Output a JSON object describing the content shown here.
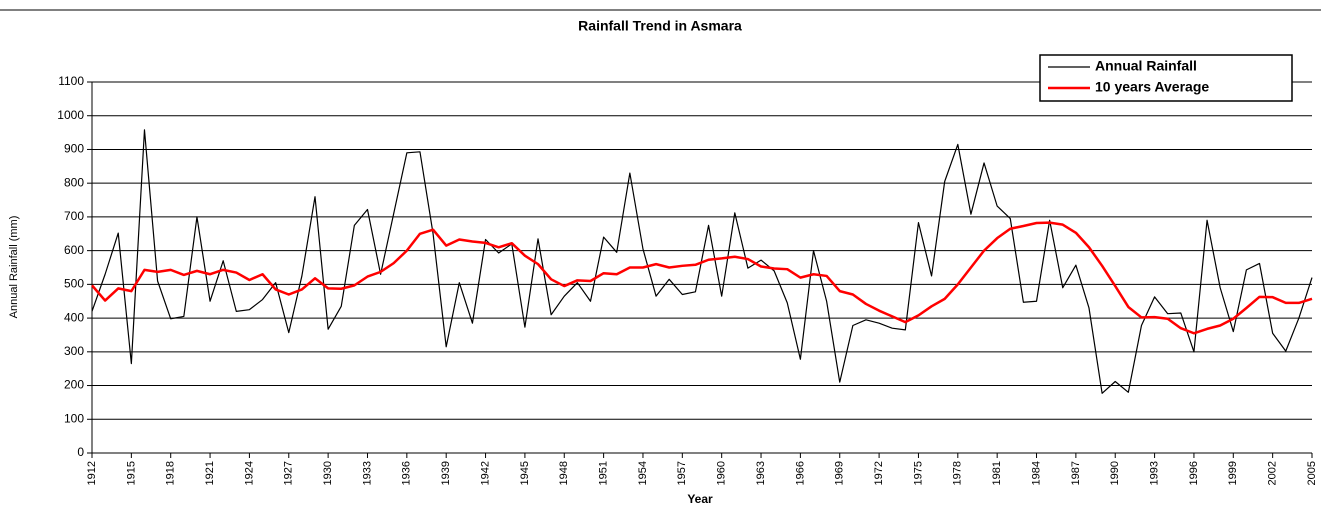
{
  "chart_data": {
    "type": "line",
    "title": "Rainfall Trend in Asmara",
    "x_label": "Year",
    "y_label": "Annual Rainfall (mm)",
    "x": [
      1912,
      1913,
      1914,
      1915,
      1916,
      1917,
      1918,
      1919,
      1920,
      1921,
      1922,
      1923,
      1924,
      1925,
      1926,
      1927,
      1928,
      1929,
      1930,
      1931,
      1932,
      1933,
      1934,
      1935,
      1936,
      1937,
      1938,
      1939,
      1940,
      1941,
      1942,
      1943,
      1944,
      1945,
      1946,
      1947,
      1948,
      1949,
      1950,
      1951,
      1952,
      1953,
      1954,
      1955,
      1956,
      1957,
      1958,
      1959,
      1960,
      1961,
      1962,
      1963,
      1964,
      1965,
      1966,
      1967,
      1968,
      1969,
      1970,
      1971,
      1972,
      1973,
      1974,
      1975,
      1976,
      1977,
      1978,
      1979,
      1980,
      1981,
      1982,
      1983,
      1984,
      1985,
      1986,
      1987,
      1988,
      1989,
      1990,
      1991,
      1992,
      1993,
      1994,
      1995,
      1996,
      1997,
      1998,
      1999,
      2000,
      2001,
      2002,
      2003,
      2004,
      2005
    ],
    "series": [
      {
        "name": "Annual Rainfall",
        "color": "#000000",
        "width": 1.2,
        "values": [
          420,
          530,
          652,
          265,
          958,
          510,
          398,
          405,
          700,
          450,
          570,
          420,
          425,
          455,
          505,
          357,
          525,
          760,
          367,
          435,
          675,
          722,
          530,
          710,
          890,
          893,
          650,
          315,
          505,
          385,
          633,
          593,
          620,
          373,
          635,
          410,
          465,
          505,
          450,
          640,
          595,
          830,
          605,
          465,
          515,
          470,
          478,
          675,
          465,
          712,
          548,
          572,
          540,
          445,
          278,
          600,
          450,
          210,
          378,
          395,
          385,
          370,
          365,
          683,
          525,
          805,
          915,
          708,
          860,
          732,
          695,
          447,
          450,
          690,
          490,
          557,
          430,
          177,
          212,
          180,
          378,
          463,
          413,
          415,
          300,
          690,
          490,
          360,
          543,
          562,
          355,
          302,
          400,
          520
        ]
      },
      {
        "name": "10 years Average",
        "color": "#ff0000",
        "width": 2.5,
        "values": [
          497,
          452,
          488,
          480,
          543,
          537,
          543,
          528,
          540,
          530,
          543,
          535,
          513,
          530,
          485,
          470,
          485,
          518,
          488,
          487,
          497,
          523,
          537,
          563,
          600,
          650,
          662,
          615,
          633,
          627,
          623,
          610,
          622,
          585,
          560,
          515,
          495,
          512,
          510,
          533,
          530,
          550,
          550,
          560,
          550,
          555,
          558,
          573,
          577,
          582,
          575,
          553,
          547,
          545,
          520,
          530,
          525,
          480,
          470,
          442,
          422,
          405,
          388,
          408,
          435,
          457,
          500,
          550,
          600,
          637,
          665,
          673,
          682,
          683,
          677,
          653,
          610,
          555,
          495,
          433,
          402,
          403,
          398,
          370,
          355,
          368,
          378,
          398,
          430,
          463,
          462,
          445,
          445,
          457
        ]
      }
    ],
    "xlim": [
      1912,
      2005
    ],
    "xticks": [
      1912,
      1915,
      1918,
      1921,
      1924,
      1927,
      1930,
      1933,
      1936,
      1939,
      1942,
      1945,
      1948,
      1951,
      1954,
      1957,
      1960,
      1963,
      1966,
      1969,
      1972,
      1975,
      1978,
      1981,
      1984,
      1987,
      1990,
      1993,
      1996,
      1999,
      2002,
      2005
    ],
    "ylim": [
      0,
      1100
    ],
    "yticks": [
      0,
      100,
      200,
      300,
      400,
      500,
      600,
      700,
      800,
      900,
      1000,
      1100
    ],
    "grid": true,
    "legend": "upper right"
  }
}
